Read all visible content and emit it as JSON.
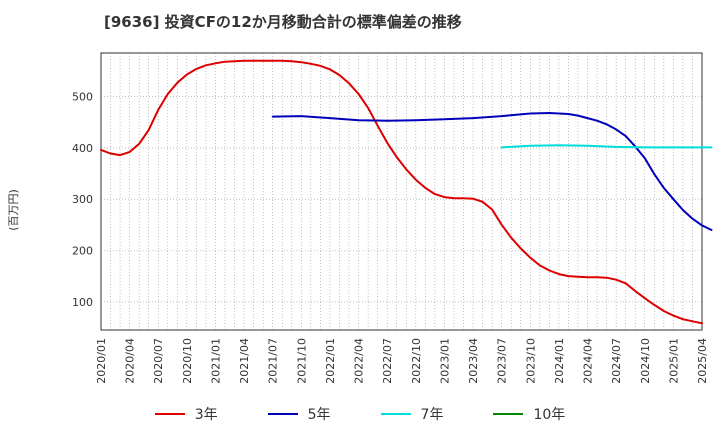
{
  "chart_data": {
    "type": "line",
    "title": "[9636]  投資CFの12か月移動合計の標準偏差の推移",
    "ylabel": "(百万円)",
    "xlabel": "",
    "ylim": [
      45,
      585
    ],
    "y_ticks": [
      100,
      200,
      300,
      400,
      500
    ],
    "x_ticks": [
      "2020/01",
      "2020/04",
      "2020/07",
      "2020/10",
      "2021/01",
      "2021/04",
      "2021/07",
      "2021/10",
      "2022/01",
      "2022/04",
      "2022/07",
      "2022/10",
      "2023/01",
      "2023/04",
      "2023/07",
      "2023/10",
      "2024/01",
      "2024/04",
      "2024/07",
      "2024/10",
      "2025/01",
      "2025/04"
    ],
    "grid": true,
    "legend_position": "bottom",
    "series": [
      {
        "name": "3年",
        "color": "#dd0000",
        "points": [
          [
            "2020/01",
            396
          ],
          [
            "2020/02",
            389
          ],
          [
            "2020/03",
            386
          ],
          [
            "2020/04",
            392
          ],
          [
            "2020/05",
            408
          ],
          [
            "2020/06",
            435
          ],
          [
            "2020/07",
            474
          ],
          [
            "2020/08",
            505
          ],
          [
            "2020/09",
            527
          ],
          [
            "2020/10",
            543
          ],
          [
            "2020/11",
            554
          ],
          [
            "2020/12",
            561
          ],
          [
            "2021/01",
            565
          ],
          [
            "2021/02",
            568
          ],
          [
            "2021/03",
            569
          ],
          [
            "2021/04",
            570
          ],
          [
            "2021/05",
            570
          ],
          [
            "2021/06",
            570
          ],
          [
            "2021/07",
            570
          ],
          [
            "2021/08",
            570
          ],
          [
            "2021/09",
            569
          ],
          [
            "2021/10",
            567
          ],
          [
            "2021/11",
            564
          ],
          [
            "2021/12",
            560
          ],
          [
            "2022/01",
            553
          ],
          [
            "2022/02",
            542
          ],
          [
            "2022/03",
            526
          ],
          [
            "2022/04",
            505
          ],
          [
            "2022/05",
            478
          ],
          [
            "2022/06",
            443
          ],
          [
            "2022/07",
            410
          ],
          [
            "2022/08",
            382
          ],
          [
            "2022/09",
            358
          ],
          [
            "2022/10",
            338
          ],
          [
            "2022/11",
            322
          ],
          [
            "2022/12",
            310
          ],
          [
            "2023/01",
            304
          ],
          [
            "2023/02",
            302
          ],
          [
            "2023/03",
            302
          ],
          [
            "2023/04",
            301
          ],
          [
            "2023/05",
            295
          ],
          [
            "2023/06",
            280
          ],
          [
            "2023/07",
            250
          ],
          [
            "2023/08",
            225
          ],
          [
            "2023/09",
            204
          ],
          [
            "2023/10",
            186
          ],
          [
            "2023/11",
            171
          ],
          [
            "2023/12",
            161
          ],
          [
            "2024/01",
            154
          ],
          [
            "2024/02",
            150
          ],
          [
            "2024/03",
            149
          ],
          [
            "2024/04",
            148
          ],
          [
            "2024/05",
            148
          ],
          [
            "2024/06",
            147
          ],
          [
            "2024/07",
            143
          ],
          [
            "2024/08",
            136
          ],
          [
            "2024/09",
            121
          ],
          [
            "2024/10",
            107
          ],
          [
            "2024/11",
            94
          ],
          [
            "2024/12",
            82
          ],
          [
            "2025/01",
            73
          ],
          [
            "2025/02",
            66
          ],
          [
            "2025/03",
            62
          ],
          [
            "2025/04",
            58
          ]
        ]
      },
      {
        "name": "5年",
        "color": "#0000bb",
        "points": [
          [
            "2021/07",
            461
          ],
          [
            "2021/10",
            462
          ],
          [
            "2022/01",
            458
          ],
          [
            "2022/04",
            454
          ],
          [
            "2022/07",
            453
          ],
          [
            "2022/10",
            454
          ],
          [
            "2023/01",
            456
          ],
          [
            "2023/04",
            458
          ],
          [
            "2023/07",
            462
          ],
          [
            "2023/10",
            467
          ],
          [
            "2023/12",
            468
          ],
          [
            "2024/01",
            467
          ],
          [
            "2024/02",
            466
          ],
          [
            "2024/03",
            463
          ],
          [
            "2024/04",
            458
          ],
          [
            "2024/05",
            453
          ],
          [
            "2024/06",
            446
          ],
          [
            "2024/07",
            436
          ],
          [
            "2024/08",
            423
          ],
          [
            "2024/09",
            403
          ],
          [
            "2024/10",
            380
          ],
          [
            "2024/11",
            349
          ],
          [
            "2024/12",
            322
          ],
          [
            "2025/01",
            300
          ],
          [
            "2025/02",
            279
          ],
          [
            "2025/03",
            262
          ],
          [
            "2025/04",
            249
          ],
          [
            "2025/05",
            240
          ]
        ]
      },
      {
        "name": "7年",
        "color": "#00dddd",
        "points": [
          [
            "2023/07",
            401
          ],
          [
            "2023/10",
            404
          ],
          [
            "2024/01",
            405
          ],
          [
            "2024/04",
            404
          ],
          [
            "2024/07",
            402
          ],
          [
            "2024/10",
            401
          ],
          [
            "2025/01",
            401
          ],
          [
            "2025/05",
            401
          ]
        ]
      },
      {
        "name": "10年",
        "color": "#008800",
        "points": []
      }
    ]
  }
}
